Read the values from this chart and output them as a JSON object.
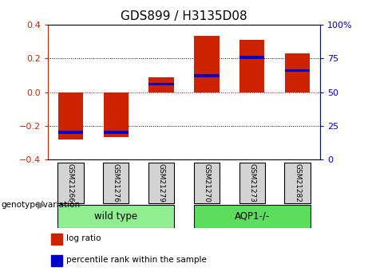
{
  "title": "GDS899 / H3135D08",
  "samples": [
    "GSM21266",
    "GSM21276",
    "GSM21279",
    "GSM21270",
    "GSM21273",
    "GSM21282"
  ],
  "log_ratios": [
    -0.28,
    -0.265,
    0.09,
    0.335,
    0.31,
    0.23
  ],
  "percentile_ranks": [
    20,
    20,
    56,
    62,
    76,
    66
  ],
  "bar_color": "#cc2200",
  "percentile_color": "#0000cc",
  "ylim_left": [
    -0.4,
    0.4
  ],
  "ylim_right": [
    0,
    100
  ],
  "yticks_left": [
    -0.4,
    -0.2,
    0.0,
    0.2,
    0.4
  ],
  "yticks_right": [
    0,
    25,
    50,
    75,
    100
  ],
  "ytick_labels_right": [
    "0",
    "25",
    "50",
    "75",
    "100%"
  ],
  "groups": [
    {
      "label": "wild type",
      "indices": [
        0,
        1,
        2
      ],
      "color": "#90ee90"
    },
    {
      "label": "AQP1-/-",
      "indices": [
        3,
        4,
        5
      ],
      "color": "#5ddd5d"
    }
  ],
  "group_label": "genotype/variation",
  "legend_items": [
    {
      "label": "log ratio",
      "color": "#cc2200"
    },
    {
      "label": "percentile rank within the sample",
      "color": "#0000cc"
    }
  ],
  "bar_width": 0.55,
  "title_fontsize": 11,
  "tick_fontsize": 8,
  "label_fontsize": 8,
  "group_fontsize": 8.5,
  "bg_color": "#ffffff"
}
